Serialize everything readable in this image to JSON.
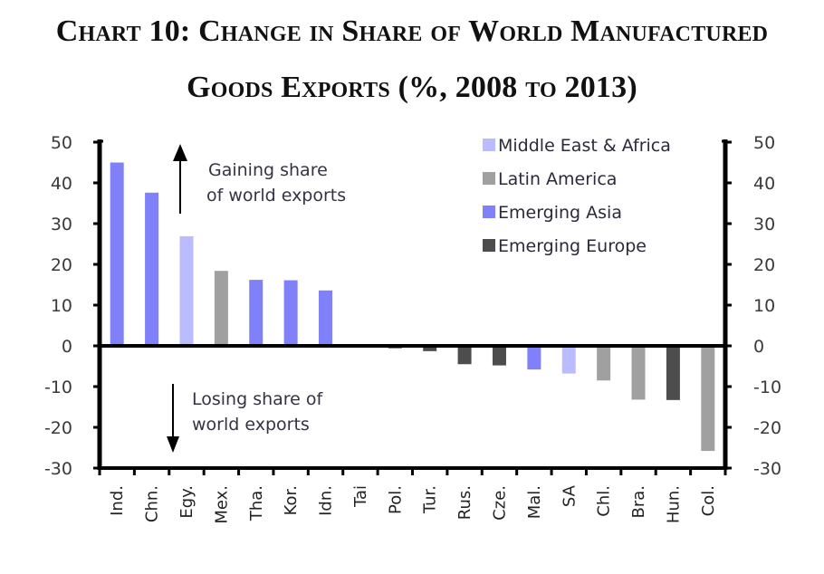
{
  "chart_data": {
    "type": "bar",
    "title": "Chart 10: Change in Share of World Manufactured Goods Exports (%, 2008 to 2013)",
    "title_line1": "Chart 10: Change in Share of World Manufactured",
    "title_line2": "Goods Exports (%, 2008 to 2013)",
    "xlabel": "",
    "ylabel": "",
    "ylim": [
      -30,
      50
    ],
    "yticks": [
      50,
      40,
      30,
      20,
      10,
      0,
      -10,
      -20,
      -30
    ],
    "secondary_y_axis": true,
    "grid": false,
    "categories": [
      "Ind.",
      "Chn.",
      "Egy.",
      "Mex.",
      "Tha.",
      "Kor.",
      "Idn.",
      "Tai",
      "Pol.",
      "Tur.",
      "Rus.",
      "Cze.",
      "Mal.",
      "SA",
      "Chl.",
      "Bra.",
      "Hun.",
      "Col."
    ],
    "values": [
      45.0,
      37.6,
      26.9,
      18.4,
      16.2,
      16.1,
      13.6,
      0.0,
      -0.6,
      -1.3,
      -4.5,
      -4.8,
      -5.8,
      -6.8,
      -8.5,
      -13.2,
      -13.3,
      -25.8
    ],
    "groups": [
      "Emerging Asia",
      "Emerging Asia",
      "Middle East & Africa",
      "Latin America",
      "Emerging Asia",
      "Emerging Asia",
      "Emerging Asia",
      "Emerging Asia",
      "Emerging Europe",
      "Emerging Europe",
      "Emerging Europe",
      "Emerging Europe",
      "Emerging Asia",
      "Middle East & Africa",
      "Latin America",
      "Latin America",
      "Emerging Europe",
      "Latin America"
    ],
    "legend": {
      "placement": "top-right",
      "entries": [
        {
          "name": "Middle East & Africa",
          "color": "#BBBBFF"
        },
        {
          "name": "Latin America",
          "color": "#A0A0A0"
        },
        {
          "name": "Emerging Asia",
          "color": "#8080F8"
        },
        {
          "name": "Emerging Europe",
          "color": "#4D4D4D"
        }
      ]
    },
    "annotations": [
      {
        "lines": [
          "Gaining share",
          "of world exports"
        ],
        "arrow": "up"
      },
      {
        "lines": [
          "Losing share of",
          "world exports"
        ],
        "arrow": "down"
      }
    ]
  }
}
